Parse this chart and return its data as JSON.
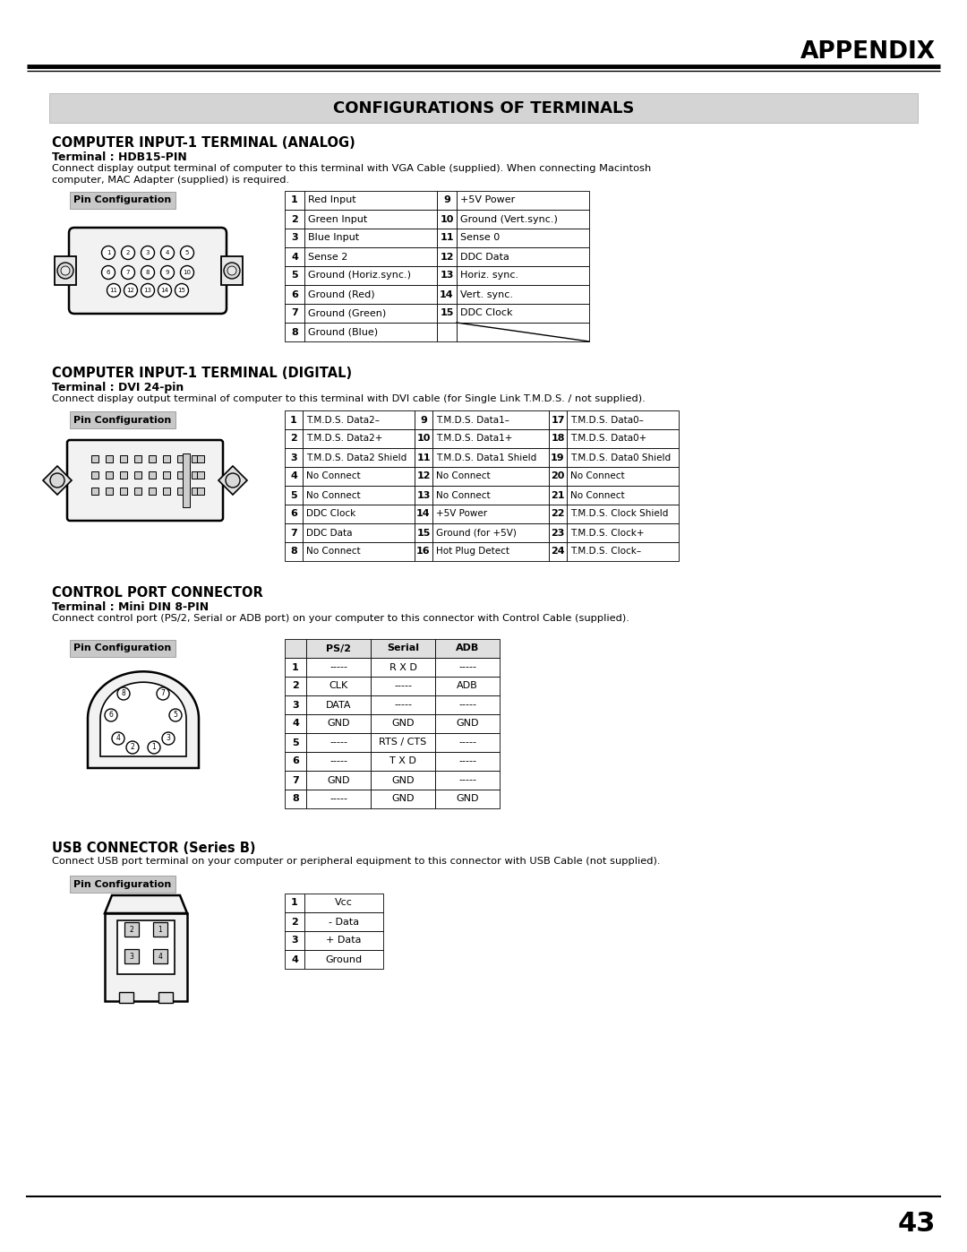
{
  "page_bg": "#ffffff",
  "header_text": "APPENDIX",
  "section_title": "CONFIGURATIONS OF TERMINALS",
  "section_title_bg": "#d4d4d4",
  "sec1_title": "COMPUTER INPUT-1 TERMINAL (ANALOG)",
  "sec1_sub": "Terminal : HDB15-PIN",
  "sec1_desc_line1": "Connect display output terminal of computer to this terminal with VGA Cable (supplied). When connecting Macintosh",
  "sec1_desc_line2": "computer, MAC Adapter (supplied) is required.",
  "sec1_table": [
    [
      "1",
      "Red Input",
      "9",
      "+5V Power"
    ],
    [
      "2",
      "Green Input",
      "10",
      "Ground (Vert.sync.)"
    ],
    [
      "3",
      "Blue Input",
      "11",
      "Sense 0"
    ],
    [
      "4",
      "Sense 2",
      "12",
      "DDC Data"
    ],
    [
      "5",
      "Ground (Horiz.sync.)",
      "13",
      "Horiz. sync."
    ],
    [
      "6",
      "Ground (Red)",
      "14",
      "Vert. sync."
    ],
    [
      "7",
      "Ground (Green)",
      "15",
      "DDC Clock"
    ],
    [
      "8",
      "Ground (Blue)",
      "",
      ""
    ]
  ],
  "sec2_title": "COMPUTER INPUT-1 TERMINAL (DIGITAL)",
  "sec2_sub": "Terminal : DVI 24-pin",
  "sec2_desc": "Connect display output terminal of computer to this terminal with DVI cable (for Single Link T.M.D.S. / not supplied).",
  "sec2_table": [
    [
      "1",
      "T.M.D.S. Data2–",
      "9",
      "T.M.D.S. Data1–",
      "17",
      "T.M.D.S. Data0–"
    ],
    [
      "2",
      "T.M.D.S. Data2+",
      "10",
      "T.M.D.S. Data1+",
      "18",
      "T.M.D.S. Data0+"
    ],
    [
      "3",
      "T.M.D.S. Data2 Shield",
      "11",
      "T.M.D.S. Data1 Shield",
      "19",
      "T.M.D.S. Data0 Shield"
    ],
    [
      "4",
      "No Connect",
      "12",
      "No Connect",
      "20",
      "No Connect"
    ],
    [
      "5",
      "No Connect",
      "13",
      "No Connect",
      "21",
      "No Connect"
    ],
    [
      "6",
      "DDC Clock",
      "14",
      "+5V Power",
      "22",
      "T.M.D.S. Clock Shield"
    ],
    [
      "7",
      "DDC Data",
      "15",
      "Ground (for +5V)",
      "23",
      "T.M.D.S. Clock+"
    ],
    [
      "8",
      "No Connect",
      "16",
      "Hot Plug Detect",
      "24",
      "T.M.D.S. Clock–"
    ]
  ],
  "sec3_title": "CONTROL PORT CONNECTOR",
  "sec3_sub": "Terminal : Mini DIN 8-PIN",
  "sec3_desc": "Connect control port (PS/2, Serial or ADB port) on your computer to this connector with Control Cable (supplied).",
  "sec3_col_headers": [
    "",
    "PS/2",
    "Serial",
    "ADB"
  ],
  "sec3_table": [
    [
      "1",
      "-----",
      "R X D",
      "-----"
    ],
    [
      "2",
      "CLK",
      "-----",
      "ADB"
    ],
    [
      "3",
      "DATA",
      "-----",
      "-----"
    ],
    [
      "4",
      "GND",
      "GND",
      "GND"
    ],
    [
      "5",
      "-----",
      "RTS / CTS",
      "-----"
    ],
    [
      "6",
      "-----",
      "T X D",
      "-----"
    ],
    [
      "7",
      "GND",
      "GND",
      "-----"
    ],
    [
      "8",
      "-----",
      "GND",
      "GND"
    ]
  ],
  "sec4_title": "USB CONNECTOR (Series B)",
  "sec4_desc": "Connect USB port terminal on your computer or peripheral equipment to this connector with USB Cable (not supplied).",
  "sec4_table": [
    [
      "1",
      "Vcc"
    ],
    [
      "2",
      "- Data"
    ],
    [
      "3",
      "+ Data"
    ],
    [
      "4",
      "Ground"
    ]
  ],
  "footer_page": "43"
}
